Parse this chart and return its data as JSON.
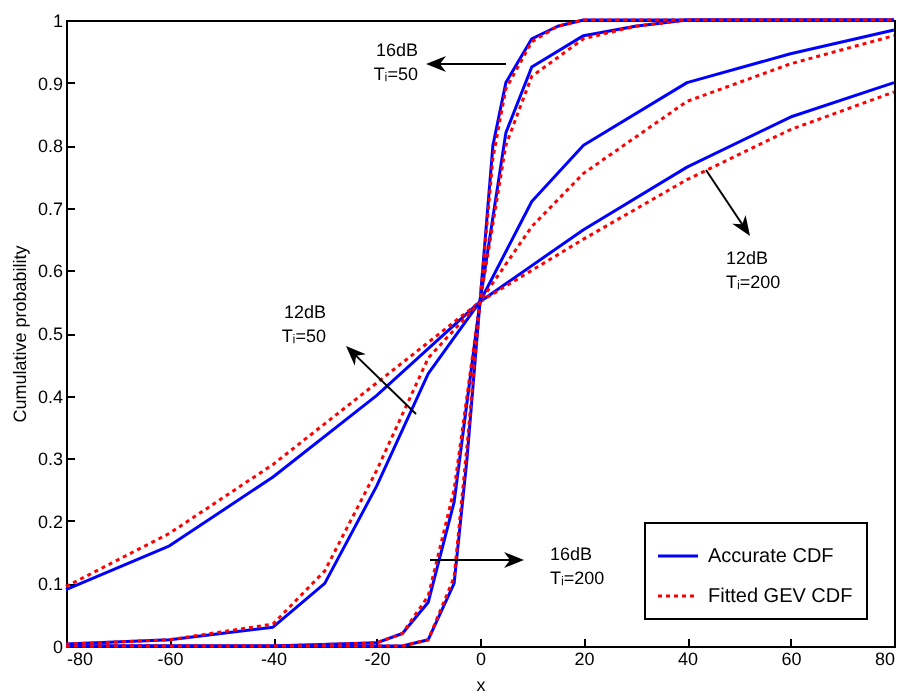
{
  "chart_data": {
    "type": "line",
    "xlabel": "x",
    "ylabel": "Cumulative probability",
    "xlim": [
      -80,
      80
    ],
    "xticks": [
      -80,
      -60,
      -40,
      -20,
      0,
      20,
      40,
      60,
      80
    ],
    "ylim": [
      0,
      1
    ],
    "yticks": [
      0,
      0.1,
      0.2,
      0.3,
      0.4,
      0.5,
      0.6,
      0.7,
      0.8,
      0.9,
      1
    ],
    "grid": false,
    "legend": "bottom right",
    "marker": "none",
    "series": [
      {
        "name": "Accurate CDF",
        "color": "#0000ff",
        "line_style": "solid",
        "x": [
          -80,
          -60,
          -40,
          -20,
          0,
          20,
          40,
          60,
          80
        ],
        "values": [
          0.09,
          0.16,
          0.27,
          0.4,
          0.55,
          0.665,
          0.765,
          0.845,
          0.9
        ]
      },
      {
        "name": "Fitted GEV CDF",
        "color": "#ff0000",
        "line_style": "dotted",
        "x": [
          -80,
          -60,
          -40,
          -20,
          0,
          20,
          40,
          60,
          80
        ],
        "values": [
          0.095,
          0.18,
          0.29,
          0.42,
          0.55,
          0.65,
          0.745,
          0.825,
          0.885
        ]
      },
      {
        "color": "#0000ff",
        "line_style": "solid",
        "x": [
          -80,
          -60,
          -40,
          -30,
          -20,
          -10,
          0,
          10,
          20,
          40,
          60,
          80
        ],
        "values": [
          0.003,
          0.01,
          0.03,
          0.1,
          0.255,
          0.435,
          0.55,
          0.71,
          0.8,
          0.9,
          0.946,
          0.984
        ]
      },
      {
        "color": "#ff0000",
        "line_style": "dotted",
        "x": [
          -80,
          -60,
          -40,
          -30,
          -20,
          -10,
          0,
          10,
          20,
          40,
          60,
          80
        ],
        "values": [
          0.003,
          0.01,
          0.035,
          0.12,
          0.28,
          0.46,
          0.55,
          0.67,
          0.755,
          0.87,
          0.93,
          0.975
        ]
      },
      {
        "color": "#0000ff",
        "line_style": "solid",
        "x": [
          -80,
          -40,
          -20,
          -15,
          -10,
          -5,
          0,
          5,
          10,
          20,
          30,
          40,
          80
        ],
        "values": [
          0,
          0,
          0.005,
          0.02,
          0.07,
          0.23,
          0.55,
          0.82,
          0.925,
          0.975,
          0.99,
          1,
          1
        ]
      },
      {
        "color": "#ff0000",
        "line_style": "dotted",
        "x": [
          -80,
          -40,
          -20,
          -15,
          -10,
          -5,
          0,
          5,
          10,
          20,
          30,
          40,
          80
        ],
        "values": [
          0,
          0,
          0.005,
          0.02,
          0.08,
          0.25,
          0.55,
          0.8,
          0.91,
          0.97,
          0.99,
          1,
          1
        ]
      },
      {
        "color": "#0000ff",
        "line_style": "solid",
        "x": [
          -80,
          -40,
          -15,
          -10,
          -5,
          -2.5,
          0,
          2.5,
          5,
          10,
          15,
          20,
          80
        ],
        "values": [
          0,
          0,
          0,
          0.01,
          0.1,
          0.3,
          0.55,
          0.8,
          0.9,
          0.97,
          0.99,
          1,
          1
        ]
      },
      {
        "color": "#ff0000",
        "line_style": "dotted",
        "x": [
          -80,
          -40,
          -15,
          -10,
          -5,
          -2.5,
          0,
          2.5,
          5,
          10,
          15,
          20,
          80
        ],
        "values": [
          0,
          0,
          0,
          0.01,
          0.11,
          0.32,
          0.55,
          0.78,
          0.89,
          0.965,
          0.99,
          1,
          1
        ]
      }
    ],
    "annotations": [
      "16dB\nTᵢ=50",
      "12dB\nTᵢ=200",
      "12dB\nTᵢ=50",
      "16dB\nTᵢ=200"
    ]
  }
}
